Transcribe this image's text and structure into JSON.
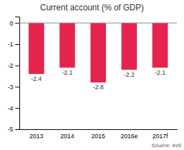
{
  "chart_data": {
    "type": "bar",
    "title": "Current account (% of GDP)",
    "categories": [
      "2013",
      "2014",
      "2015",
      "2016e",
      "2017f"
    ],
    "values": [
      -2.4,
      -2.1,
      -2.8,
      -2.2,
      -2.1
    ],
    "color": "#e5244e",
    "ylim": [
      -5,
      0.3
    ],
    "yticks": [
      0,
      -1,
      -2,
      -3,
      -4,
      -5
    ],
    "grid": false,
    "data_labels": true,
    "annotations": [
      "Source: IHS"
    ]
  }
}
